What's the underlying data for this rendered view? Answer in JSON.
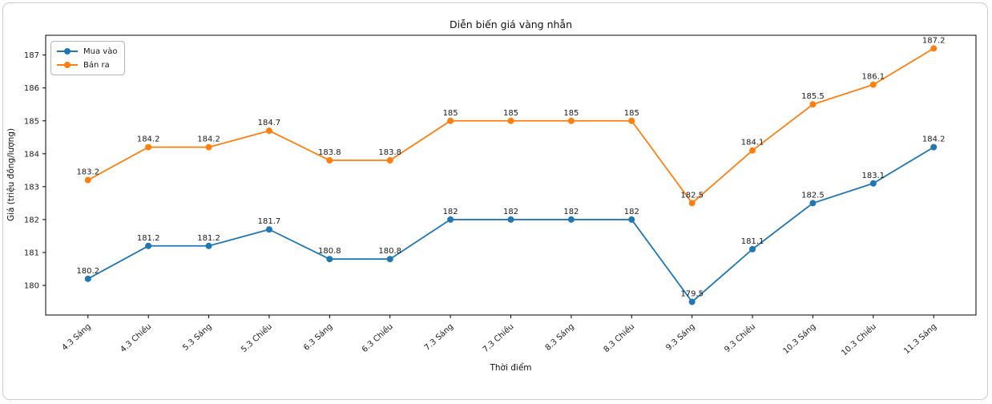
{
  "chart_data": {
    "type": "line",
    "title": "Diễn biến giá vàng nhẫn",
    "xlabel": "Thời điểm",
    "ylabel": "Giá (triệu đồng/lượng)",
    "categories": [
      "4.3 Sáng",
      "4.3 Chiều",
      "5.3 Sáng",
      "5.3 Chiều",
      "6.3 Sáng",
      "6.3 Chiều",
      "7.3 Sáng",
      "7.3 Chiều",
      "8.3 Sáng",
      "8.3 Chiều",
      "9.3 Sáng",
      "9.3 Chiều",
      "10.3 Sáng",
      "10.3 Chiều",
      "11.3 Sáng"
    ],
    "series": [
      {
        "name": "Mua vào",
        "color": "#1f77b4",
        "values": [
          180.2,
          181.2,
          181.2,
          181.7,
          180.8,
          180.8,
          182,
          182,
          182,
          182,
          179.5,
          181.1,
          182.5,
          183.1,
          184.2
        ]
      },
      {
        "name": "Bán ra",
        "color": "#ff7f0e",
        "values": [
          183.2,
          184.2,
          184.2,
          184.7,
          183.8,
          183.8,
          185,
          185,
          185,
          185,
          182.5,
          184.1,
          185.5,
          186.1,
          187.2
        ]
      }
    ],
    "ylim": [
      179.1,
      187.6
    ],
    "yticks": [
      180,
      181,
      182,
      183,
      184,
      185,
      186,
      187
    ],
    "legend_position": "upper left",
    "grid": false,
    "point_labels": true
  }
}
